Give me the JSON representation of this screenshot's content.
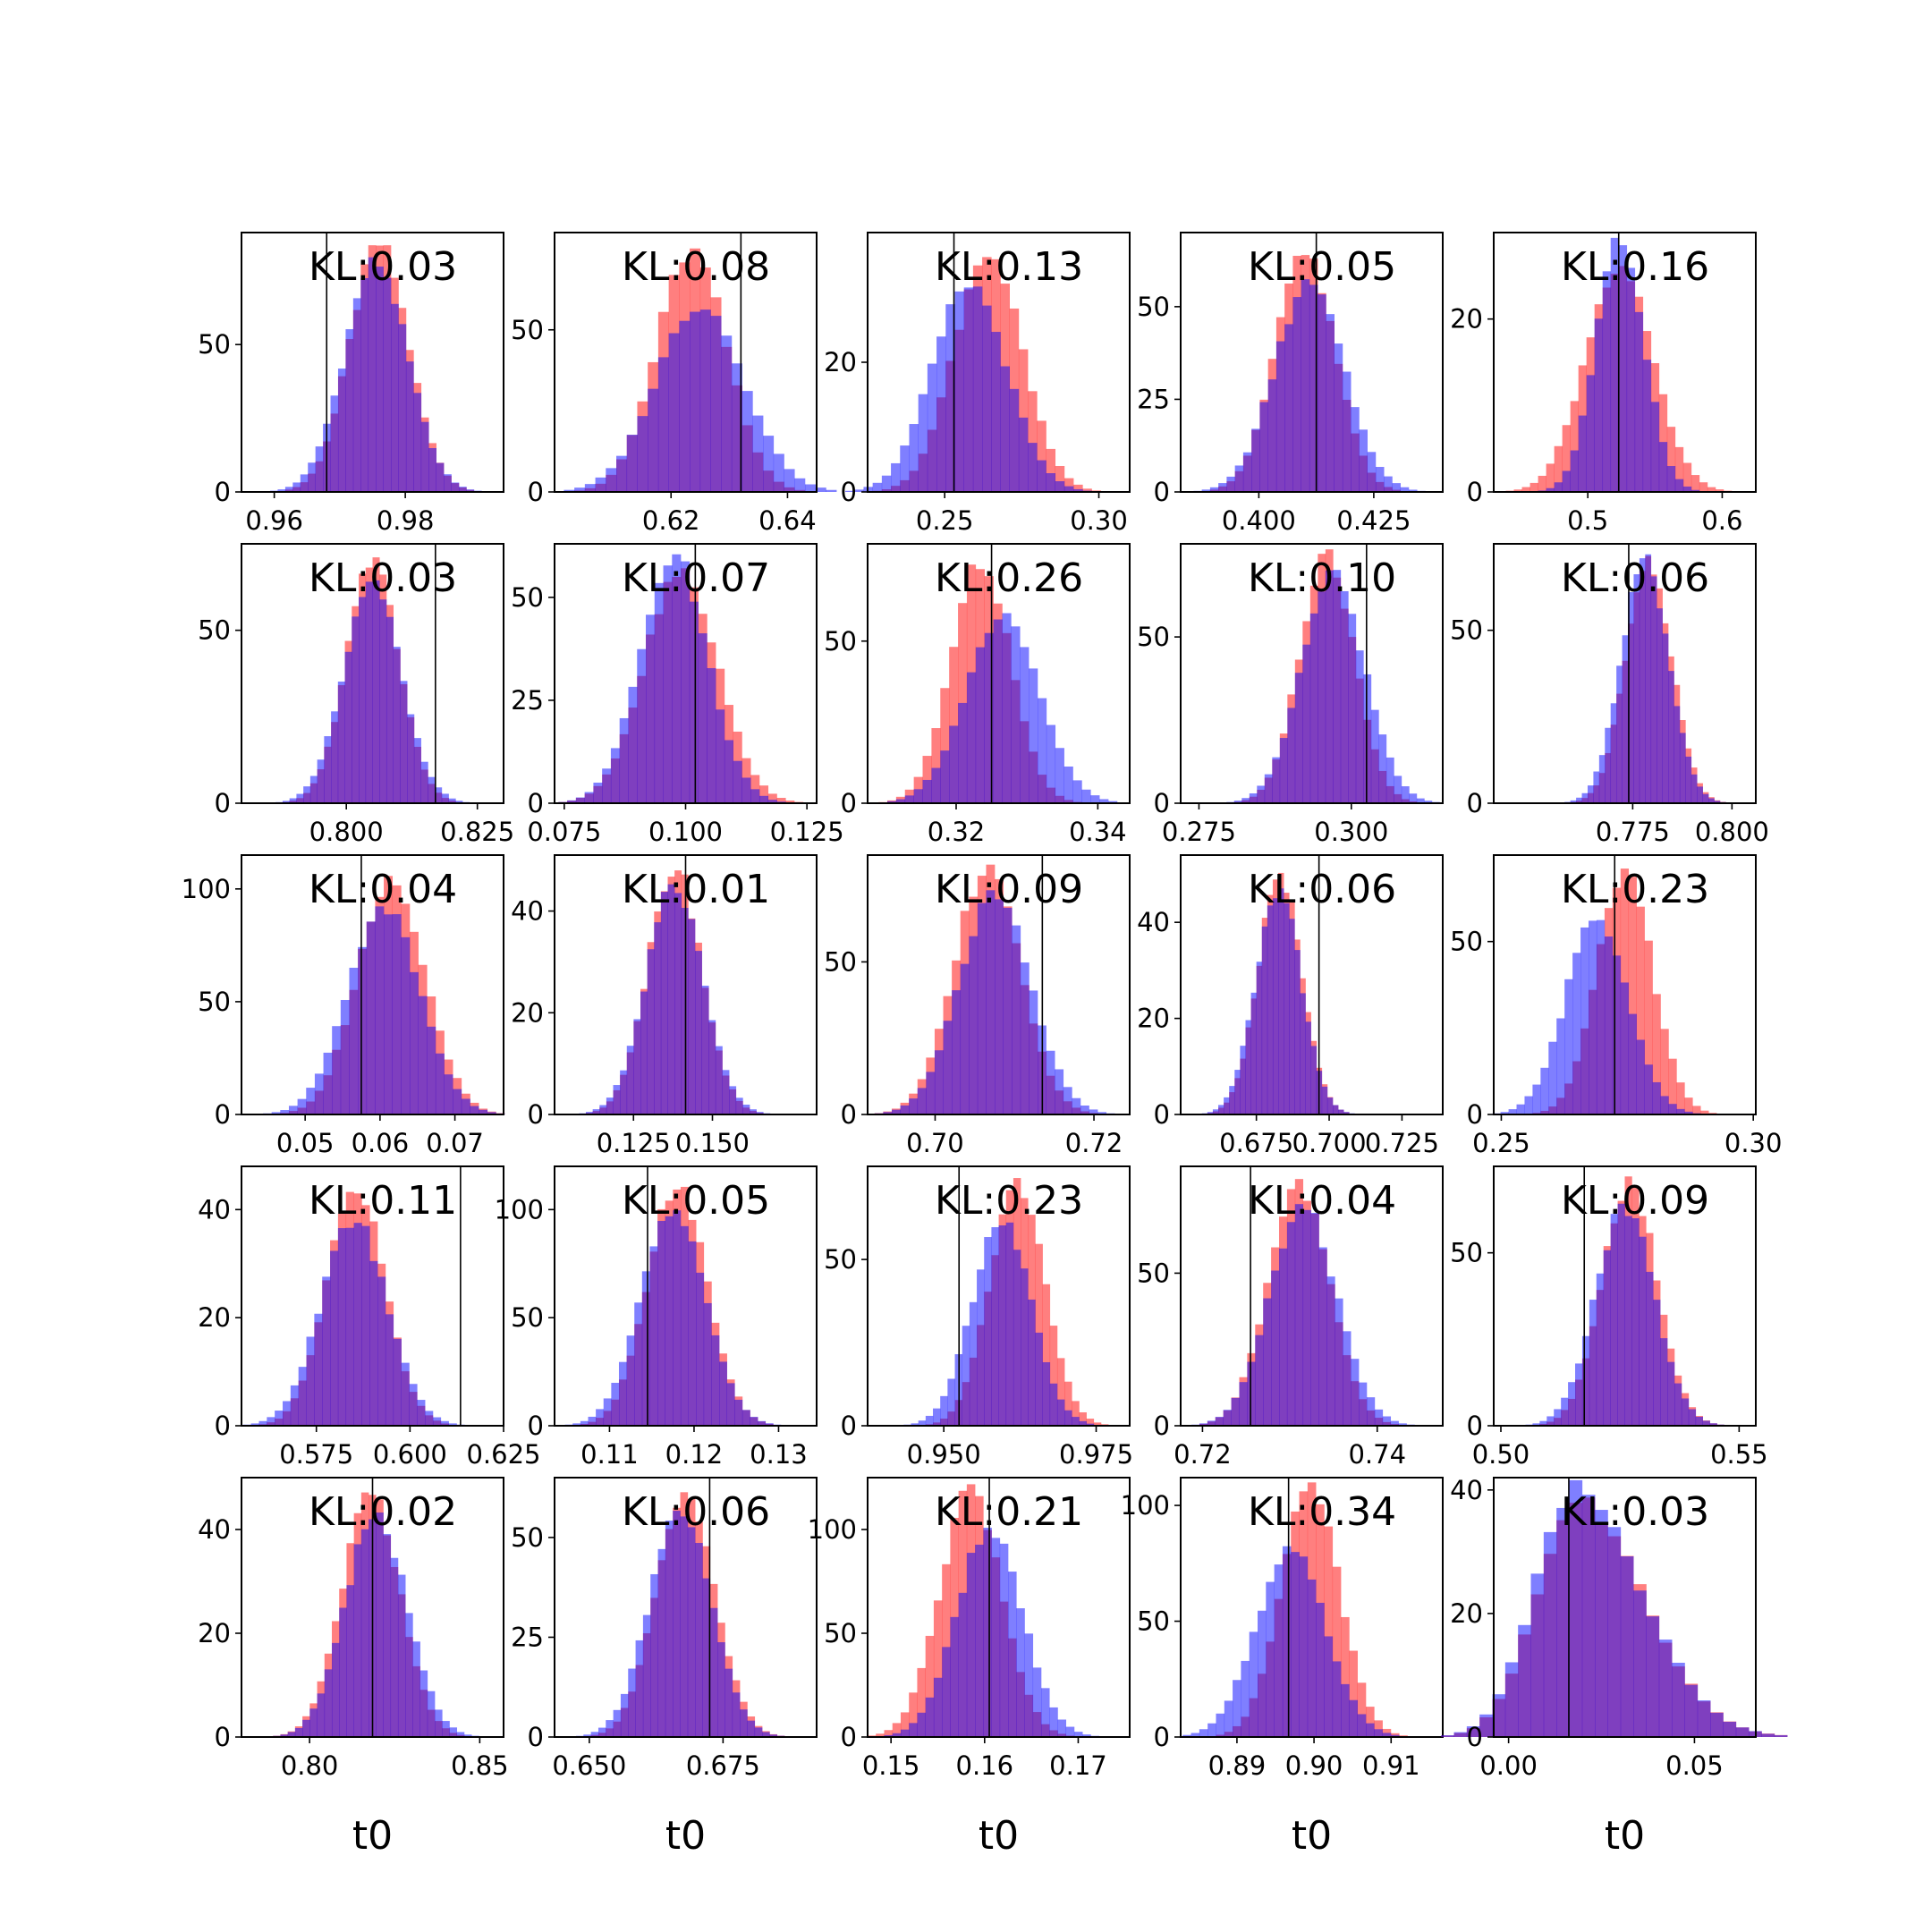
{
  "figure": {
    "grid": false,
    "series_colors": {
      "red": "#ff0000",
      "blue": "#0000ff",
      "overlap": "#7f3fbf",
      "truth_line": "#000000"
    },
    "series_alpha": 0.5,
    "xlabel": "t0"
  },
  "chart_data": [
    {
      "type": "bar",
      "row": 0,
      "col": 0,
      "annotation": "KL:0.03",
      "xlim": [
        0.955,
        0.995
      ],
      "ylim": [
        0,
        88
      ],
      "xticks": [
        0.96,
        0.98
      ],
      "xtick_labels": [
        "0.96",
        "0.98"
      ],
      "yticks": [
        0,
        50
      ],
      "ytick_labels": [
        "0",
        "50"
      ],
      "truth": 0.968,
      "red": {
        "mean": 0.976,
        "sd": 0.0045,
        "peak": 84
      },
      "blue": {
        "mean": 0.9755,
        "sd": 0.0048,
        "peak": 78
      }
    },
    {
      "type": "bar",
      "row": 0,
      "col": 1,
      "annotation": "KL:0.08",
      "xlim": [
        0.6,
        0.645
      ],
      "ylim": [
        0,
        80
      ],
      "xticks": [
        0.62,
        0.64
      ],
      "xtick_labels": [
        "0.62",
        "0.64"
      ],
      "yticks": [
        0,
        50
      ],
      "ytick_labels": [
        "0",
        "50"
      ],
      "truth": 0.632,
      "red": {
        "mean": 0.6235,
        "sd": 0.006,
        "peak": 74
      },
      "blue": {
        "mean": 0.625,
        "sd": 0.0075,
        "peak": 58
      }
    },
    {
      "type": "bar",
      "row": 0,
      "col": 2,
      "annotation": "KL:0.13",
      "xlim": [
        0.225,
        0.31
      ],
      "ylim": [
        0,
        40
      ],
      "xticks": [
        0.25,
        0.3
      ],
      "xtick_labels": [
        "0.25",
        "0.30"
      ],
      "yticks": [
        0,
        20
      ],
      "ytick_labels": [
        "0",
        "20"
      ],
      "truth": 0.253,
      "red": {
        "mean": 0.264,
        "sd": 0.011,
        "peak": 37
      },
      "blue": {
        "mean": 0.258,
        "sd": 0.012,
        "peak": 32
      }
    },
    {
      "type": "bar",
      "row": 0,
      "col": 3,
      "annotation": "KL:0.05",
      "xlim": [
        0.383,
        0.44
      ],
      "ylim": [
        0,
        70
      ],
      "xticks": [
        0.4,
        0.425
      ],
      "xtick_labels": [
        "0.400",
        "0.425"
      ],
      "yticks": [
        0,
        25,
        50
      ],
      "ytick_labels": [
        "0",
        "25",
        "50"
      ],
      "truth": 0.4125,
      "red": {
        "mean": 0.41,
        "sd": 0.0065,
        "peak": 64
      },
      "blue": {
        "mean": 0.411,
        "sd": 0.0075,
        "peak": 56
      }
    },
    {
      "type": "bar",
      "row": 0,
      "col": 4,
      "annotation": "KL:0.16",
      "xlim": [
        0.43,
        0.625
      ],
      "ylim": [
        0,
        30
      ],
      "xticks": [
        0.5,
        0.6
      ],
      "xtick_labels": [
        "0.5",
        "0.6"
      ],
      "yticks": [
        0,
        20
      ],
      "ytick_labels": [
        "0",
        "20"
      ],
      "truth": 0.523,
      "red": {
        "mean": 0.523,
        "sd": 0.025,
        "peak": 26
      },
      "blue": {
        "mean": 0.524,
        "sd": 0.018,
        "peak": 29
      }
    },
    {
      "type": "bar",
      "row": 1,
      "col": 0,
      "annotation": "KL:0.03",
      "xlim": [
        0.78,
        0.83
      ],
      "ylim": [
        0,
        75
      ],
      "xticks": [
        0.8,
        0.825
      ],
      "xtick_labels": [
        "0.800",
        "0.825"
      ],
      "yticks": [
        0,
        50
      ],
      "ytick_labels": [
        "0",
        "50"
      ],
      "truth": 0.817,
      "red": {
        "mean": 0.805,
        "sd": 0.005,
        "peak": 70
      },
      "blue": {
        "mean": 0.805,
        "sd": 0.0055,
        "peak": 63
      }
    },
    {
      "type": "bar",
      "row": 1,
      "col": 1,
      "annotation": "KL:0.07",
      "xlim": [
        0.073,
        0.127
      ],
      "ylim": [
        0,
        63
      ],
      "xticks": [
        0.075,
        0.1,
        0.125
      ],
      "xtick_labels": [
        "0.075",
        "0.100",
        "0.125"
      ],
      "yticks": [
        0,
        25,
        50
      ],
      "ytick_labels": [
        "0",
        "25",
        "50"
      ],
      "truth": 0.102,
      "red": {
        "mean": 0.099,
        "sd": 0.0075,
        "peak": 57
      },
      "blue": {
        "mean": 0.0975,
        "sd": 0.007,
        "peak": 60
      }
    },
    {
      "type": "bar",
      "row": 1,
      "col": 2,
      "annotation": "KL:0.26",
      "xlim": [
        0.3075,
        0.3445
      ],
      "ylim": [
        0,
        80
      ],
      "xticks": [
        0.32,
        0.34
      ],
      "xtick_labels": [
        "0.32",
        "0.34"
      ],
      "yticks": [
        0,
        50
      ],
      "ytick_labels": [
        "0",
        "50"
      ],
      "truth": 0.325,
      "red": {
        "mean": 0.3235,
        "sd": 0.0042,
        "peak": 75
      },
      "blue": {
        "mean": 0.3265,
        "sd": 0.0052,
        "peak": 57
      }
    },
    {
      "type": "bar",
      "row": 1,
      "col": 3,
      "annotation": "KL:0.10",
      "xlim": [
        0.272,
        0.315
      ],
      "ylim": [
        0,
        78
      ],
      "xticks": [
        0.275,
        0.3
      ],
      "xtick_labels": [
        "0.275",
        "0.300"
      ],
      "yticks": [
        0,
        50
      ],
      "ytick_labels": [
        "0",
        "50"
      ],
      "truth": 0.3025,
      "red": {
        "mean": 0.296,
        "sd": 0.0045,
        "peak": 74
      },
      "blue": {
        "mean": 0.297,
        "sd": 0.0052,
        "peak": 68
      }
    },
    {
      "type": "bar",
      "row": 1,
      "col": 4,
      "annotation": "KL:0.06",
      "xlim": [
        0.74,
        0.806
      ],
      "ylim": [
        0,
        75
      ],
      "xticks": [
        0.775,
        0.8
      ],
      "xtick_labels": [
        "0.775",
        "0.800"
      ],
      "yticks": [
        0,
        50
      ],
      "ytick_labels": [
        "0",
        "50"
      ],
      "truth": 0.774,
      "red": {
        "mean": 0.779,
        "sd": 0.0058,
        "peak": 70
      },
      "blue": {
        "mean": 0.778,
        "sd": 0.006,
        "peak": 70
      }
    },
    {
      "type": "bar",
      "row": 2,
      "col": 0,
      "annotation": "KL:0.04",
      "xlim": [
        0.0415,
        0.0765
      ],
      "ylim": [
        0,
        115
      ],
      "xticks": [
        0.05,
        0.06,
        0.07
      ],
      "xtick_labels": [
        "0.05",
        "0.06",
        "0.07"
      ],
      "yticks": [
        0,
        50,
        100
      ],
      "ytick_labels": [
        "0",
        "50",
        "100"
      ],
      "truth": 0.0575,
      "red": {
        "mean": 0.0615,
        "sd": 0.0045,
        "peak": 105
      },
      "blue": {
        "mean": 0.0605,
        "sd": 0.0048,
        "peak": 92
      }
    },
    {
      "type": "bar",
      "row": 2,
      "col": 1,
      "annotation": "KL:0.01",
      "xlim": [
        0.1,
        0.183
      ],
      "ylim": [
        0,
        51
      ],
      "xticks": [
        0.125,
        0.15
      ],
      "xtick_labels": [
        "0.125",
        "0.150"
      ],
      "yticks": [
        0,
        20,
        40
      ],
      "ytick_labels": [
        "0",
        "20",
        "40"
      ],
      "truth": 0.1415,
      "red": {
        "mean": 0.138,
        "sd": 0.0085,
        "peak": 49
      },
      "blue": {
        "mean": 0.138,
        "sd": 0.009,
        "peak": 45
      }
    },
    {
      "type": "bar",
      "row": 2,
      "col": 2,
      "annotation": "KL:0.09",
      "xlim": [
        0.6915,
        0.7245
      ],
      "ylim": [
        0,
        85
      ],
      "xticks": [
        0.7,
        0.72
      ],
      "xtick_labels": [
        "0.70",
        "0.72"
      ],
      "yticks": [
        0,
        50
      ],
      "ytick_labels": [
        "0",
        "50"
      ],
      "truth": 0.7135,
      "red": {
        "mean": 0.7065,
        "sd": 0.0042,
        "peak": 80
      },
      "blue": {
        "mean": 0.7075,
        "sd": 0.0045,
        "peak": 72
      }
    },
    {
      "type": "bar",
      "row": 2,
      "col": 3,
      "annotation": "KL:0.06",
      "xlim": [
        0.649,
        0.739
      ],
      "ylim": [
        0,
        54
      ],
      "xticks": [
        0.675,
        0.7,
        0.725
      ],
      "xtick_labels": [
        "0.675",
        "0.700",
        "0.725"
      ],
      "yticks": [
        0,
        20,
        40
      ],
      "ytick_labels": [
        "0",
        "20",
        "40"
      ],
      "truth": 0.6965,
      "red": {
        "mean": 0.683,
        "sd": 0.0075,
        "peak": 50
      },
      "blue": {
        "mean": 0.6825,
        "sd": 0.0078,
        "peak": 47
      }
    },
    {
      "type": "bar",
      "row": 2,
      "col": 4,
      "annotation": "KL:0.23",
      "xlim": [
        0.2485,
        0.3005
      ],
      "ylim": [
        0,
        75
      ],
      "xticks": [
        0.25,
        0.3
      ],
      "xtick_labels": [
        "0.25",
        "0.30"
      ],
      "yticks": [
        0,
        50
      ],
      "ytick_labels": [
        "0",
        "50"
      ],
      "truth": 0.2725,
      "red": {
        "mean": 0.2745,
        "sd": 0.0055,
        "peak": 70
      },
      "blue": {
        "mean": 0.269,
        "sd": 0.0062,
        "peak": 57
      }
    },
    {
      "type": "bar",
      "row": 3,
      "col": 0,
      "annotation": "KL:0.11",
      "xlim": [
        0.555,
        0.625
      ],
      "ylim": [
        0,
        48
      ],
      "xticks": [
        0.575,
        0.6,
        0.625
      ],
      "xtick_labels": [
        "0.575",
        "0.600",
        "0.625"
      ],
      "yticks": [
        0,
        20,
        40
      ],
      "ytick_labels": [
        "0",
        "20",
        "40"
      ],
      "truth": 0.6135,
      "red": {
        "mean": 0.5855,
        "sd": 0.0078,
        "peak": 44
      },
      "blue": {
        "mean": 0.585,
        "sd": 0.0088,
        "peak": 38
      }
    },
    {
      "type": "bar",
      "row": 3,
      "col": 1,
      "annotation": "KL:0.05",
      "xlim": [
        0.1035,
        0.1345
      ],
      "ylim": [
        0,
        120
      ],
      "xticks": [
        0.11,
        0.12,
        0.13
      ],
      "xtick_labels": [
        "0.11",
        "0.12",
        "0.13"
      ],
      "yticks": [
        0,
        50,
        100
      ],
      "ytick_labels": [
        "0",
        "50",
        "100"
      ],
      "truth": 0.1145,
      "red": {
        "mean": 0.118,
        "sd": 0.0035,
        "peak": 112
      },
      "blue": {
        "mean": 0.1175,
        "sd": 0.0038,
        "peak": 100
      }
    },
    {
      "type": "bar",
      "row": 3,
      "col": 2,
      "annotation": "KL:0.23",
      "xlim": [
        0.9375,
        0.9805
      ],
      "ylim": [
        0,
        78
      ],
      "xticks": [
        0.95,
        0.975
      ],
      "xtick_labels": [
        "0.950",
        "0.975"
      ],
      "yticks": [
        0,
        50
      ],
      "ytick_labels": [
        "0",
        "50"
      ],
      "truth": 0.9525,
      "red": {
        "mean": 0.962,
        "sd": 0.0045,
        "peak": 73
      },
      "blue": {
        "mean": 0.9595,
        "sd": 0.0048,
        "peak": 62
      }
    },
    {
      "type": "bar",
      "row": 3,
      "col": 3,
      "annotation": "KL:0.04",
      "xlim": [
        0.7175,
        0.7475
      ],
      "ylim": [
        0,
        85
      ],
      "xticks": [
        0.72,
        0.74
      ],
      "xtick_labels": [
        "0.72",
        "0.74"
      ],
      "yticks": [
        0,
        50
      ],
      "ytick_labels": [
        "0",
        "50"
      ],
      "truth": 0.7255,
      "red": {
        "mean": 0.731,
        "sd": 0.0035,
        "peak": 79
      },
      "blue": {
        "mean": 0.7315,
        "sd": 0.0038,
        "peak": 72
      }
    },
    {
      "type": "bar",
      "row": 3,
      "col": 4,
      "annotation": "KL:0.09",
      "xlim": [
        0.4985,
        0.5535
      ],
      "ylim": [
        0,
        75
      ],
      "xticks": [
        0.5,
        0.55
      ],
      "xtick_labels": [
        "0.50",
        "0.55"
      ],
      "yticks": [
        0,
        50
      ],
      "ytick_labels": [
        "0",
        "50"
      ],
      "truth": 0.5175,
      "red": {
        "mean": 0.527,
        "sd": 0.0058,
        "peak": 70
      },
      "blue": {
        "mean": 0.526,
        "sd": 0.0062,
        "peak": 63
      }
    },
    {
      "type": "bar",
      "row": 4,
      "col": 0,
      "annotation": "KL:0.02",
      "xlim": [
        0.78,
        0.857
      ],
      "ylim": [
        0,
        50
      ],
      "xticks": [
        0.8,
        0.85
      ],
      "xtick_labels": [
        "0.80",
        "0.85"
      ],
      "yticks": [
        0,
        20,
        40
      ],
      "ytick_labels": [
        "0",
        "20",
        "40"
      ],
      "truth": 0.8185,
      "red": {
        "mean": 0.818,
        "sd": 0.0085,
        "peak": 47
      },
      "blue": {
        "mean": 0.8195,
        "sd": 0.009,
        "peak": 43
      }
    },
    {
      "type": "bar",
      "row": 4,
      "col": 1,
      "annotation": "KL:0.06",
      "xlim": [
        0.6435,
        0.6925
      ],
      "ylim": [
        0,
        65
      ],
      "xticks": [
        0.65,
        0.675
      ],
      "xtick_labels": [
        "0.650",
        "0.675"
      ],
      "yticks": [
        0,
        25,
        50
      ],
      "ytick_labels": [
        "0",
        "25",
        "50"
      ],
      "truth": 0.6725,
      "red": {
        "mean": 0.668,
        "sd": 0.0055,
        "peak": 61
      },
      "blue": {
        "mean": 0.667,
        "sd": 0.0058,
        "peak": 56
      }
    },
    {
      "type": "bar",
      "row": 4,
      "col": 2,
      "annotation": "KL:0.21",
      "xlim": [
        0.1475,
        0.1755
      ],
      "ylim": [
        0,
        125
      ],
      "xticks": [
        0.15,
        0.16,
        0.17
      ],
      "xtick_labels": [
        "0.15",
        "0.16",
        "0.17"
      ],
      "yticks": [
        0,
        50,
        100
      ],
      "ytick_labels": [
        "0",
        "50",
        "100"
      ],
      "truth": 0.1605,
      "red": {
        "mean": 0.1585,
        "sd": 0.0033,
        "peak": 118
      },
      "blue": {
        "mean": 0.1605,
        "sd": 0.0035,
        "peak": 100
      }
    },
    {
      "type": "bar",
      "row": 4,
      "col": 3,
      "annotation": "KL:0.34",
      "xlim": [
        0.8827,
        0.9167
      ],
      "ylim": [
        0,
        112
      ],
      "xticks": [
        0.89,
        0.9,
        0.91
      ],
      "xtick_labels": [
        "0.89",
        "0.90",
        "0.91"
      ],
      "yticks": [
        0,
        50,
        100
      ],
      "ytick_labels": [
        "0",
        "50",
        "100"
      ],
      "truth": 0.8967,
      "red": {
        "mean": 0.8995,
        "sd": 0.0038,
        "peak": 107
      },
      "blue": {
        "mean": 0.897,
        "sd": 0.0045,
        "peak": 80
      }
    },
    {
      "type": "bar",
      "row": 4,
      "col": 4,
      "annotation": "KL:0.03",
      "xlim": [
        -0.004,
        0.0665
      ],
      "ylim": [
        0,
        42
      ],
      "xticks": [
        0,
        0.05
      ],
      "xtick_labels": [
        "0.00",
        "0.05"
      ],
      "yticks": [
        0,
        20,
        40
      ],
      "ytick_labels": [
        "0",
        "20",
        "40"
      ],
      "truth": 0.0162,
      "red": {
        "mean": 0.0185,
        "sd": 0.011,
        "peak": 38,
        "skew": 0.6
      },
      "blue": {
        "mean": 0.018,
        "sd": 0.011,
        "peak": 40,
        "skew": 0.6
      }
    }
  ]
}
